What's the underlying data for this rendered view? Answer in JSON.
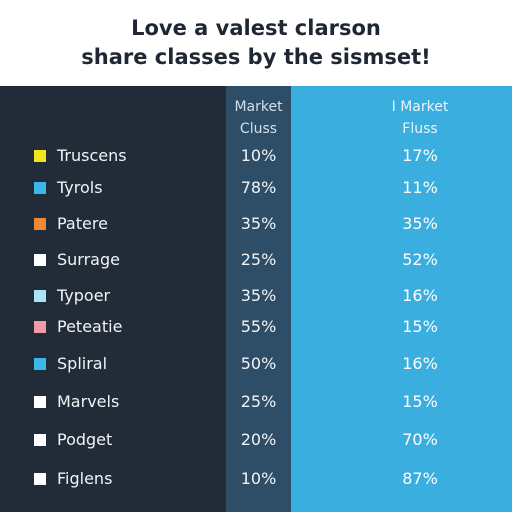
{
  "title": {
    "line1": "Love a valest clarson",
    "line2": "share classes by the sismset!"
  },
  "chart_data": {
    "type": "table",
    "columns": [
      {
        "label_line1": "Market",
        "label_line2": "Cluss"
      },
      {
        "label_line1": "I Market",
        "label_line2": "Fluss"
      }
    ],
    "rows": [
      {
        "name": "Truscens",
        "color": "#f2e21c",
        "a": "10%",
        "b": "17%"
      },
      {
        "name": "Tyrols",
        "color": "#3bb8e8",
        "a": "78%",
        "b": "11%"
      },
      {
        "name": "Patere",
        "color": "#f08a3a",
        "a": "35%",
        "b": "35%"
      },
      {
        "name": "Surrage",
        "color": "#ffffff",
        "a": "25%",
        "b": "52%"
      },
      {
        "name": "Typoer",
        "color": "#a8e4f6",
        "a": "35%",
        "b": "16%"
      },
      {
        "name": "Peteatie",
        "color": "#f29aa8",
        "a": "55%",
        "b": "15%"
      },
      {
        "name": "Spliral",
        "color": "#3bb8e8",
        "a": "50%",
        "b": "16%"
      },
      {
        "name": "Marvels",
        "color": "#ffffff",
        "a": "25%",
        "b": "15%"
      },
      {
        "name": "Podget",
        "color": "#ffffff",
        "a": "20%",
        "b": "70%"
      },
      {
        "name": "Figlens",
        "color": "#ffffff",
        "a": "10%",
        "b": "87%"
      }
    ]
  }
}
